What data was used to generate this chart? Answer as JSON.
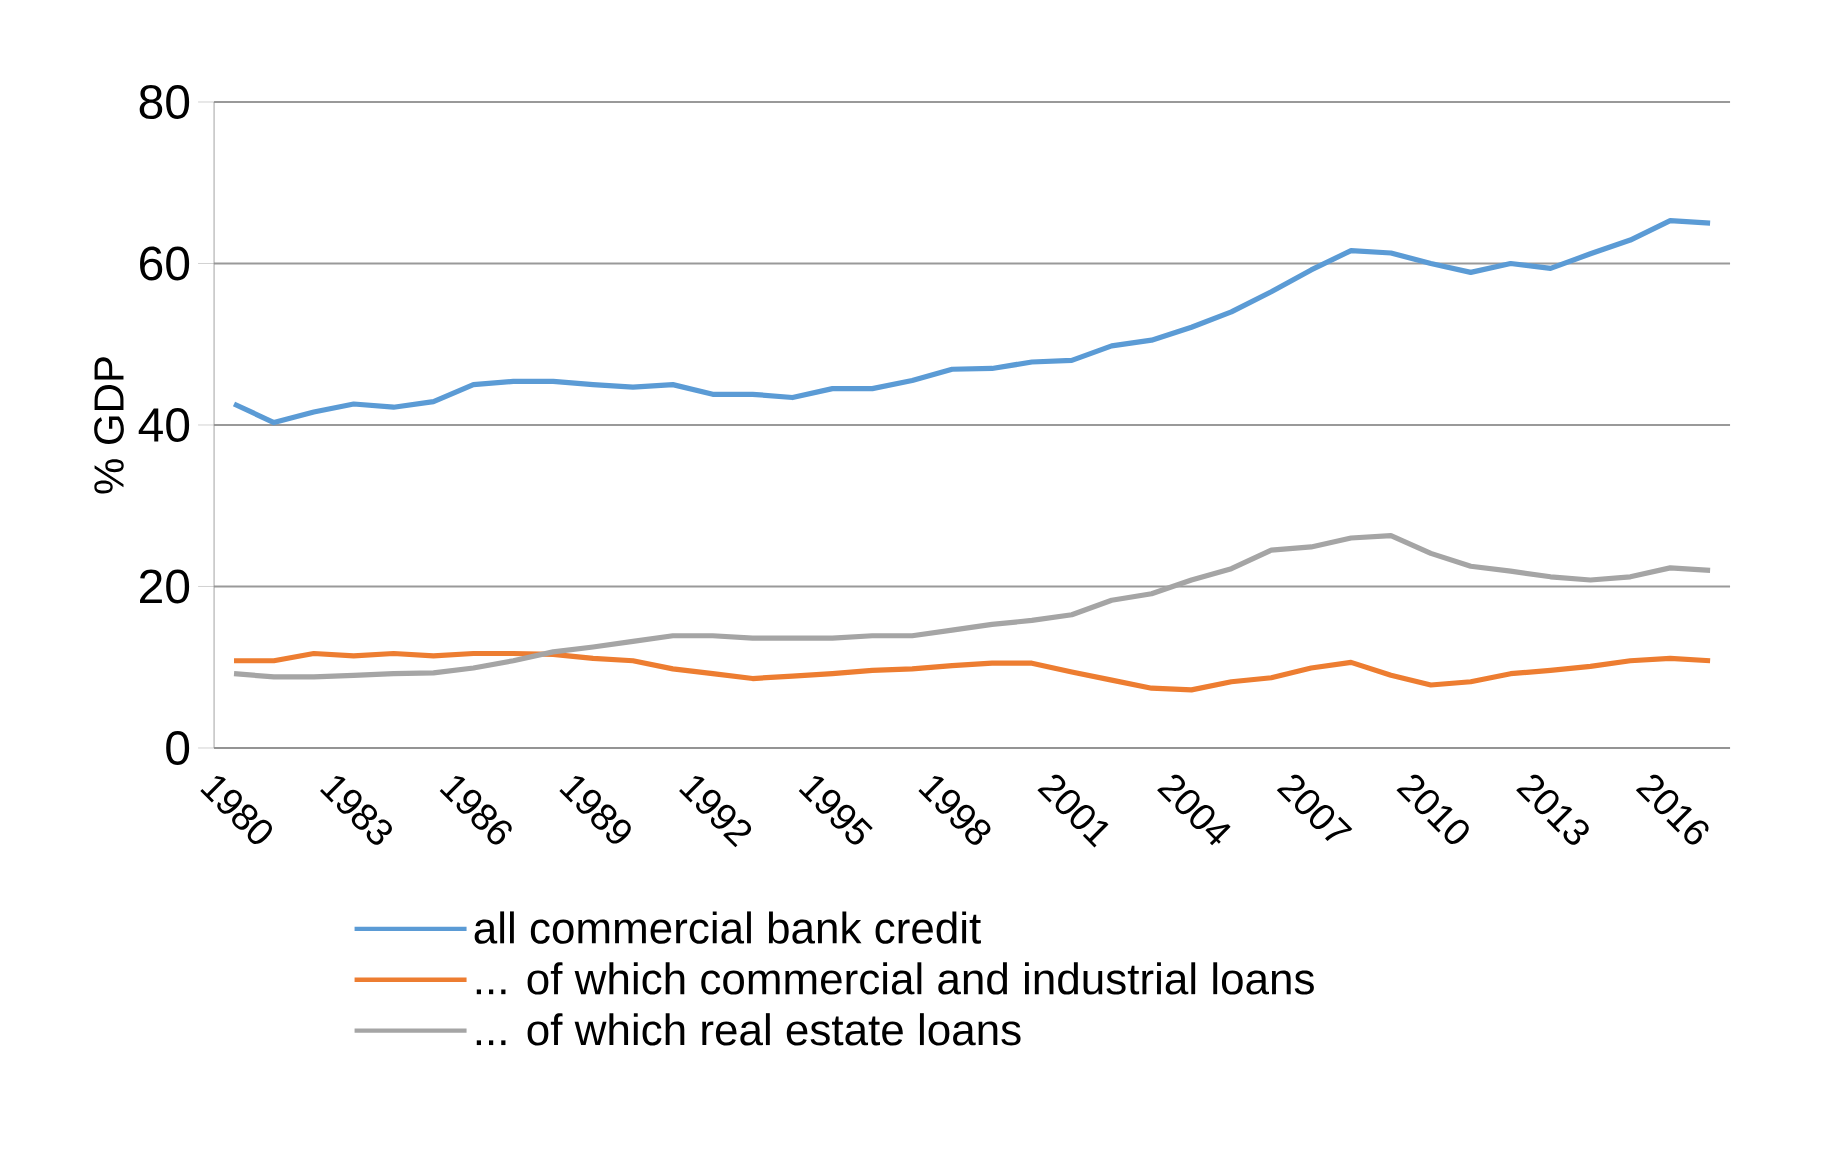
{
  "chart_data": {
    "type": "line",
    "ylabel": "% GDP",
    "categories": [
      "1980",
      null,
      null,
      "1983",
      null,
      null,
      "1986",
      null,
      null,
      "1989",
      null,
      null,
      "1992",
      null,
      null,
      "1995",
      null,
      null,
      "1998",
      null,
      null,
      "2001",
      null,
      null,
      "2004",
      null,
      null,
      "2007",
      null,
      null,
      "2010",
      null,
      null,
      "2013",
      null,
      null,
      "2016",
      null
    ],
    "series": [
      {
        "name": "all commercial bank credit",
        "color": "#5b9bd5",
        "values": [
          42.6,
          40.3,
          41.6,
          42.6,
          42.2,
          42.9,
          45.0,
          45.4,
          45.4,
          45.0,
          44.7,
          45.0,
          43.8,
          43.8,
          43.4,
          44.5,
          44.5,
          45.5,
          46.9,
          47.0,
          47.8,
          48.0,
          49.8,
          50.5,
          52.1,
          54.0,
          56.5,
          59.2,
          61.6,
          61.3,
          60.0,
          58.9,
          60.0,
          59.4,
          61.2,
          62.9,
          65.3,
          65.0
        ]
      },
      {
        "name": "... of which commercial and industrial loans",
        "color": "#ed7d31",
        "values": [
          10.8,
          10.8,
          11.7,
          11.4,
          11.7,
          11.4,
          11.7,
          11.7,
          11.6,
          11.1,
          10.8,
          9.8,
          9.2,
          8.6,
          8.9,
          9.2,
          9.6,
          9.8,
          10.2,
          10.5,
          10.5,
          9.4,
          8.4,
          7.4,
          7.2,
          8.2,
          8.7,
          9.9,
          10.6,
          9.0,
          7.8,
          8.2,
          9.2,
          9.6,
          10.1,
          10.8,
          11.1,
          10.8
        ]
      },
      {
        "name": "... of which real estate loans",
        "color": "#a5a5a5",
        "values": [
          9.2,
          8.8,
          8.8,
          9.0,
          9.2,
          9.3,
          9.9,
          10.8,
          11.9,
          12.5,
          13.2,
          13.9,
          13.9,
          13.6,
          13.6,
          13.6,
          13.9,
          13.9,
          14.6,
          15.3,
          15.8,
          16.5,
          18.3,
          19.1,
          20.8,
          22.2,
          24.5,
          24.9,
          26.0,
          26.3,
          24.1,
          22.5,
          21.9,
          21.2,
          20.8,
          21.2,
          22.3,
          22.0
        ]
      }
    ],
    "ylim": [
      0,
      80
    ],
    "yticks": [
      0,
      20,
      40,
      60,
      80
    ],
    "grid": "y",
    "legend": "bottom",
    "marker": "none",
    "line_style": "solid"
  }
}
